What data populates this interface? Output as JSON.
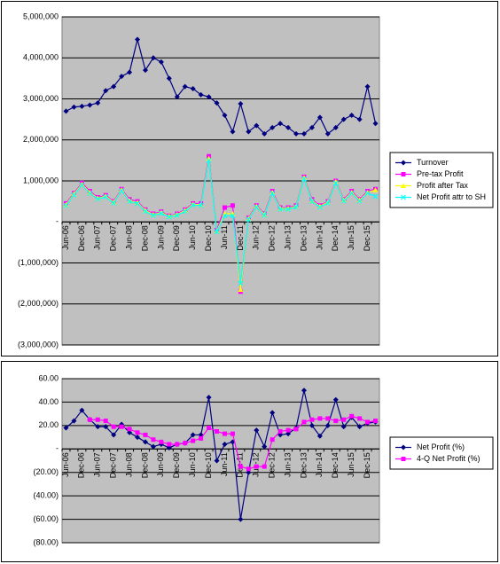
{
  "chart_data": [
    {
      "type": "line",
      "categories": [
        "Jun-06",
        null,
        "Dec-06",
        null,
        "Jun-07",
        null,
        "Dec-07",
        null,
        "Jun-08",
        null,
        "Dec-08",
        null,
        "Jun-09",
        null,
        "Dec-09",
        null,
        "Jun-10",
        null,
        "Dec-10",
        null,
        "Jun-11",
        null,
        "Dec-11",
        null,
        "Jun-12",
        null,
        "Dec-12",
        null,
        "Jun-13",
        null,
        "Dec-13",
        null,
        "Jun-14",
        null,
        "Dec-14",
        null,
        "Jun-15",
        null,
        "Dec-15",
        null
      ],
      "ylim": [
        -3000000,
        5000000
      ],
      "yticks": [
        {
          "value": -3000000,
          "label": "(3,000,000)"
        },
        {
          "value": -2000000,
          "label": "(2,000,000)"
        },
        {
          "value": -1000000,
          "label": "(1,000,000)"
        },
        {
          "value": 0,
          "label": "-"
        },
        {
          "value": 1000000,
          "label": "1,000,000"
        },
        {
          "value": 2000000,
          "label": "2,000,000"
        },
        {
          "value": 3000000,
          "label": "3,000,000"
        },
        {
          "value": 4000000,
          "label": "4,000,000"
        },
        {
          "value": 5000000,
          "label": "5,000,000"
        }
      ],
      "grid": true,
      "legend": "right",
      "series": [
        {
          "name": "Turnover",
          "color": "#000080",
          "marker": "diamond",
          "values": [
            2700000,
            2800000,
            2820000,
            2850000,
            2900000,
            3200000,
            3300000,
            3550000,
            3650000,
            4450000,
            3700000,
            4000000,
            3900000,
            3500000,
            3050000,
            3300000,
            3250000,
            3100000,
            3050000,
            2900000,
            2600000,
            2200000,
            2880000,
            2200000,
            2350000,
            2150000,
            2300000,
            2400000,
            2300000,
            2150000,
            2150000,
            2300000,
            2550000,
            2150000,
            2300000,
            2500000,
            2600000,
            2500000,
            3300000,
            2400000
          ]
        },
        {
          "name": "Pre-tax Profit",
          "color": "#ff00ff",
          "marker": "square",
          "values": [
            450000,
            700000,
            950000,
            750000,
            600000,
            650000,
            500000,
            800000,
            550000,
            500000,
            300000,
            200000,
            250000,
            150000,
            200000,
            300000,
            450000,
            450000,
            1600000,
            -200000,
            350000,
            400000,
            -1700000,
            100000,
            400000,
            200000,
            750000,
            350000,
            350000,
            400000,
            1100000,
            550000,
            400000,
            500000,
            1000000,
            550000,
            750000,
            550000,
            750000,
            800000
          ]
        },
        {
          "name": "Profit after Tax",
          "color": "#ffff00",
          "marker": "triangle",
          "values": [
            420000,
            680000,
            920000,
            720000,
            580000,
            630000,
            480000,
            780000,
            520000,
            470000,
            280000,
            180000,
            230000,
            140000,
            180000,
            280000,
            430000,
            420000,
            1550000,
            -220000,
            200000,
            200000,
            -1650000,
            80000,
            380000,
            180000,
            720000,
            330000,
            330000,
            380000,
            1080000,
            520000,
            380000,
            480000,
            980000,
            530000,
            720000,
            530000,
            720000,
            780000
          ]
        },
        {
          "name": "Net Profit attr to SH",
          "color": "#00ffff",
          "marker": "x",
          "values": [
            400000,
            660000,
            900000,
            700000,
            560000,
            610000,
            460000,
            760000,
            500000,
            450000,
            260000,
            160000,
            210000,
            120000,
            160000,
            260000,
            410000,
            400000,
            1500000,
            -240000,
            150000,
            150000,
            -1500000,
            60000,
            360000,
            160000,
            700000,
            310000,
            310000,
            360000,
            1050000,
            500000,
            360000,
            460000,
            950000,
            510000,
            700000,
            510000,
            700000,
            620000
          ]
        }
      ]
    },
    {
      "type": "line",
      "categories": [
        "Jun-06",
        null,
        "Dec-06",
        null,
        "Jun-07",
        null,
        "Dec-07",
        null,
        "Jun-08",
        null,
        "Dec-08",
        null,
        "Jun-09",
        null,
        "Dec-09",
        null,
        "Jun-10",
        null,
        "Dec-10",
        null,
        "Jun-11",
        null,
        "Dec-11",
        null,
        "Jun-12",
        null,
        "Dec-12",
        null,
        "Jun-13",
        null,
        "Dec-13",
        null,
        "Jun-14",
        null,
        "Dec-14",
        null,
        "Jun-15",
        null,
        "Dec-15",
        null
      ],
      "ylim": [
        -80,
        60
      ],
      "yticks": [
        {
          "value": -80,
          "label": "(80.00)"
        },
        {
          "value": -60,
          "label": "(60.00)"
        },
        {
          "value": -40,
          "label": "(40.00)"
        },
        {
          "value": -20,
          "label": "(20.00)"
        },
        {
          "value": 0,
          "label": "-"
        },
        {
          "value": 20,
          "label": "20.00"
        },
        {
          "value": 40,
          "label": "40.00"
        },
        {
          "value": 60,
          "label": "60.00"
        }
      ],
      "grid": true,
      "legend": "right",
      "series": [
        {
          "name": "Net Profit (%)",
          "color": "#000080",
          "marker": "diamond",
          "values": [
            18,
            24,
            33,
            25,
            19,
            19,
            12,
            21,
            14,
            10,
            6,
            2,
            4,
            1,
            4,
            5,
            12,
            12,
            44,
            -10,
            4,
            6,
            -60,
            -20,
            16,
            2,
            31,
            12,
            13,
            18,
            50,
            20,
            11,
            20,
            42,
            19,
            27,
            19,
            22,
            23
          ]
        },
        {
          "name": "4-Q Net Profit (%)",
          "color": "#ff00ff",
          "marker": "square",
          "values": [
            null,
            null,
            null,
            25,
            25,
            24,
            19,
            19,
            17,
            14,
            12,
            8,
            6,
            4,
            4,
            5,
            7,
            9,
            18,
            15,
            13,
            13,
            -15,
            -17,
            -15,
            -15,
            8,
            15,
            16,
            17,
            23,
            25,
            26,
            26,
            24,
            25,
            28,
            26,
            23,
            24
          ]
        }
      ]
    }
  ]
}
